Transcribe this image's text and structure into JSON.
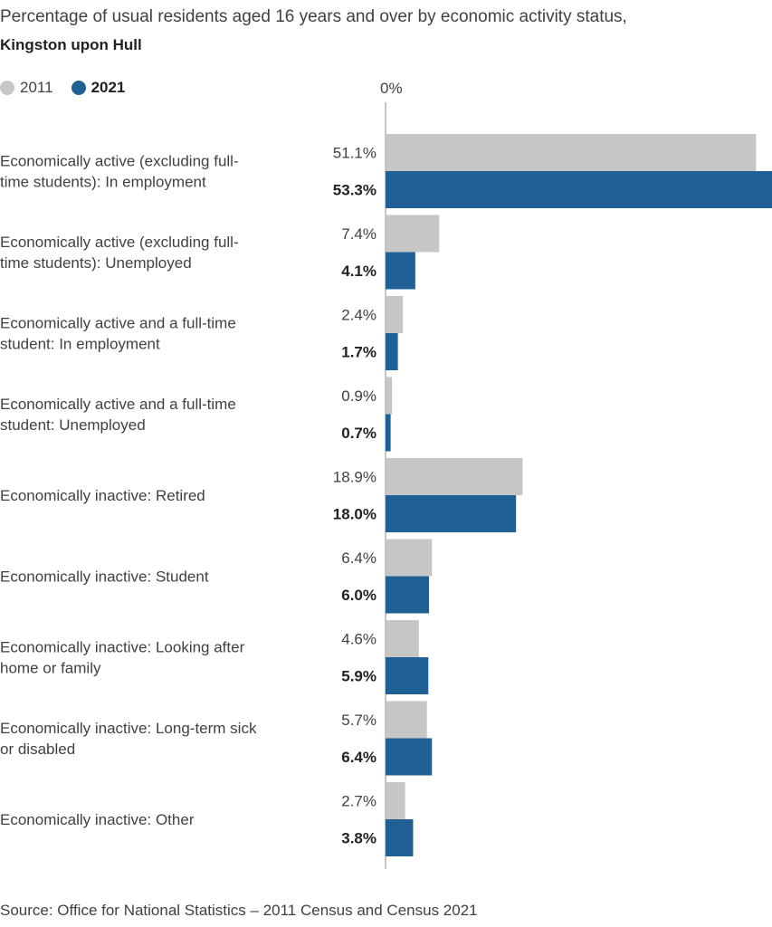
{
  "chart_data": {
    "type": "bar",
    "orientation": "horizontal",
    "title": "Percentage of usual residents aged 16 years and over by economic activity status,",
    "subtitle": "Kingston upon Hull",
    "axis_tick_label": "0%",
    "xlim": [
      0,
      53.3
    ],
    "legend_position": "top-left",
    "categories": [
      [
        "Economically active (excluding full-",
        "time students): In employment"
      ],
      [
        "Economically active (excluding full-",
        "time students): Unemployed"
      ],
      [
        "Economically active and a full-time",
        "student: In employment"
      ],
      [
        "Economically active and a full-time",
        "student: Unemployed"
      ],
      [
        "Economically inactive: Retired"
      ],
      [
        "Economically inactive: Student"
      ],
      [
        "Economically inactive: Looking after",
        "home or family"
      ],
      [
        "Economically inactive: Long-term sick",
        "or disabled"
      ],
      [
        "Economically inactive: Other"
      ]
    ],
    "series": [
      {
        "name": "2011",
        "color": "#c6c6c6",
        "values": [
          51.1,
          7.4,
          2.4,
          0.9,
          18.9,
          6.4,
          4.6,
          5.7,
          2.7
        ],
        "labels": [
          "51.1%",
          "7.4%",
          "2.4%",
          "0.9%",
          "18.9%",
          "6.4%",
          "4.6%",
          "5.7%",
          "2.7%"
        ]
      },
      {
        "name": "2021",
        "color": "#206095",
        "values": [
          53.3,
          4.1,
          1.7,
          0.7,
          18.0,
          6.0,
          5.9,
          6.4,
          3.8
        ],
        "labels": [
          "53.3%",
          "4.1%",
          "1.7%",
          "0.7%",
          "18.0%",
          "6.0%",
          "5.9%",
          "6.4%",
          "3.8%"
        ]
      }
    ],
    "source": "Source: Office for National Statistics – 2011 Census and Census 2021"
  }
}
